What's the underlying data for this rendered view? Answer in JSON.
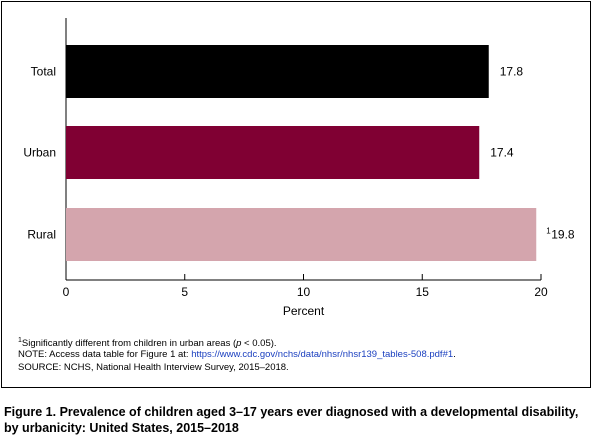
{
  "chart_data": {
    "type": "bar",
    "orientation": "horizontal",
    "categories": [
      "Total",
      "Urban",
      "Rural"
    ],
    "values": [
      17.8,
      17.4,
      19.8
    ],
    "value_labels": [
      "17.8",
      "17.4",
      "19.8"
    ],
    "superscripts": [
      "",
      "",
      "1"
    ],
    "colors": [
      "#000000",
      "#800033",
      "#d4a5ad"
    ],
    "xlabel": "Percent",
    "xlim": [
      0,
      20
    ],
    "xticks": [
      0,
      5,
      10,
      15,
      20
    ],
    "grid": false
  },
  "footnotes": {
    "significance_sup": "1",
    "significance": "Significantly different from children in urban areas (",
    "significance_p": "p",
    "significance_tail": " < 0.05).",
    "note_prefix": "NOTE: Access data table for Figure 1 at: ",
    "note_link": "https://www.cdc.gov/nchs/data/nhsr/nhsr139_tables-508.pdf#1",
    "note_suffix": ".",
    "source": "SOURCE: NCHS, National Health Interview Survey, 2015–2018."
  },
  "figure_title": "Figure 1. Prevalence of children aged 3–17 years ever diagnosed with a developmental disability, by urbanicity: United States, 2015–2018"
}
